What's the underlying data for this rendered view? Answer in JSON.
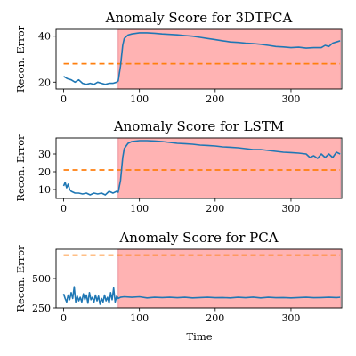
{
  "figure": {
    "xlabel": "Time"
  },
  "chart_data": [
    {
      "type": "line",
      "title": "Anomaly Score for 3DTPCA",
      "ylabel": "Recon. Error",
      "xlim": [
        -10,
        367
      ],
      "ylim": [
        17,
        43
      ],
      "xticks": [
        0,
        100,
        200,
        300
      ],
      "yticks": [
        20,
        40
      ],
      "anomaly_region": [
        72,
        365
      ],
      "threshold": 28,
      "colors": {
        "score": "#1f77b4",
        "threshold": "#ff7f0e",
        "region": "#ff9999"
      },
      "series": [
        {
          "x": [
            0,
            5,
            10,
            15,
            20,
            25,
            30,
            35,
            40,
            45,
            50,
            55,
            60,
            65,
            70,
            72,
            75,
            78,
            80,
            85,
            90,
            100,
            110,
            120,
            130,
            140,
            150,
            160,
            170,
            180,
            190,
            200,
            210,
            220,
            230,
            240,
            250,
            260,
            270,
            280,
            290,
            300,
            310,
            320,
            330,
            340,
            345,
            350,
            355,
            360,
            365
          ],
          "y": [
            22.5,
            21.5,
            21,
            20,
            21,
            19.5,
            19,
            19.5,
            19,
            20,
            19.5,
            19,
            19.5,
            19.5,
            20,
            20.5,
            27,
            36,
            39,
            40.5,
            41,
            41.5,
            41.5,
            41.3,
            41,
            40.8,
            40.6,
            40.3,
            40,
            39.5,
            39,
            38.5,
            38,
            37.5,
            37.3,
            37,
            36.8,
            36.5,
            36,
            35.5,
            35.3,
            35,
            35.2,
            34.8,
            35,
            35,
            36,
            35.5,
            37,
            37.5,
            38
          ]
        }
      ]
    },
    {
      "type": "line",
      "title": "Anomaly Score for LSTM",
      "ylabel": "Recon. Error",
      "xlim": [
        -10,
        367
      ],
      "ylim": [
        5,
        39
      ],
      "xticks": [
        0,
        100,
        200,
        300
      ],
      "yticks": [
        10,
        20,
        30
      ],
      "anomaly_region": [
        72,
        365
      ],
      "threshold": 21,
      "colors": {
        "score": "#1f77b4",
        "threshold": "#ff7f0e",
        "region": "#ff9999"
      },
      "series": [
        {
          "x": [
            0,
            2,
            4,
            6,
            8,
            10,
            15,
            20,
            25,
            30,
            35,
            40,
            45,
            50,
            55,
            60,
            65,
            70,
            72,
            75,
            78,
            80,
            85,
            90,
            100,
            110,
            120,
            130,
            140,
            150,
            160,
            170,
            180,
            190,
            200,
            210,
            220,
            230,
            240,
            250,
            260,
            270,
            280,
            290,
            300,
            310,
            320,
            325,
            330,
            335,
            340,
            345,
            350,
            355,
            360,
            365
          ],
          "y": [
            12,
            14,
            11,
            13,
            10,
            9,
            8,
            8,
            7.5,
            8,
            7,
            8,
            7.5,
            8,
            7,
            9,
            8,
            9,
            8.5,
            15,
            28,
            33,
            36,
            37,
            37.5,
            37.5,
            37.3,
            37,
            36.5,
            36,
            35.8,
            35.5,
            35,
            34.8,
            34.5,
            34,
            33.8,
            33.5,
            33,
            32.5,
            32.5,
            32,
            31.5,
            31,
            30.8,
            30.5,
            30,
            28,
            29,
            27.5,
            30,
            28,
            30,
            28,
            31,
            30
          ]
        }
      ]
    },
    {
      "type": "line",
      "title": "Anomaly Score for PCA",
      "ylabel": "Recon. Error",
      "xlim": [
        -10,
        367
      ],
      "ylim": [
        250,
        750
      ],
      "xticks": [
        0,
        100,
        200,
        300
      ],
      "yticks": [
        250,
        500
      ],
      "xlabel": "Time",
      "anomaly_region": [
        72,
        365
      ],
      "threshold": 700,
      "colors": {
        "score": "#1f77b4",
        "threshold": "#ff7f0e",
        "region": "#ff9999"
      },
      "series": [
        {
          "x": [
            0,
            2,
            4,
            6,
            8,
            10,
            12,
            14,
            16,
            18,
            20,
            22,
            24,
            26,
            28,
            30,
            32,
            34,
            36,
            38,
            40,
            42,
            44,
            46,
            48,
            50,
            52,
            54,
            56,
            58,
            60,
            62,
            64,
            66,
            68,
            70,
            72,
            75,
            80,
            90,
            100,
            110,
            120,
            130,
            140,
            150,
            160,
            170,
            180,
            190,
            200,
            210,
            220,
            230,
            240,
            250,
            260,
            270,
            280,
            290,
            300,
            310,
            320,
            330,
            340,
            350,
            360,
            365
          ],
          "y": [
            370,
            330,
            300,
            360,
            320,
            380,
            330,
            430,
            300,
            350,
            310,
            340,
            300,
            370,
            320,
            360,
            290,
            380,
            320,
            340,
            300,
            360,
            310,
            350,
            280,
            330,
            300,
            360,
            310,
            340,
            290,
            380,
            320,
            420,
            300,
            350,
            330,
            340,
            345,
            340,
            345,
            335,
            340,
            338,
            340,
            336,
            340,
            335,
            338,
            340,
            336,
            338,
            335,
            340,
            336,
            342,
            335,
            340,
            336,
            338,
            335,
            338,
            340,
            336,
            338,
            340,
            338,
            340
          ]
        }
      ]
    }
  ]
}
